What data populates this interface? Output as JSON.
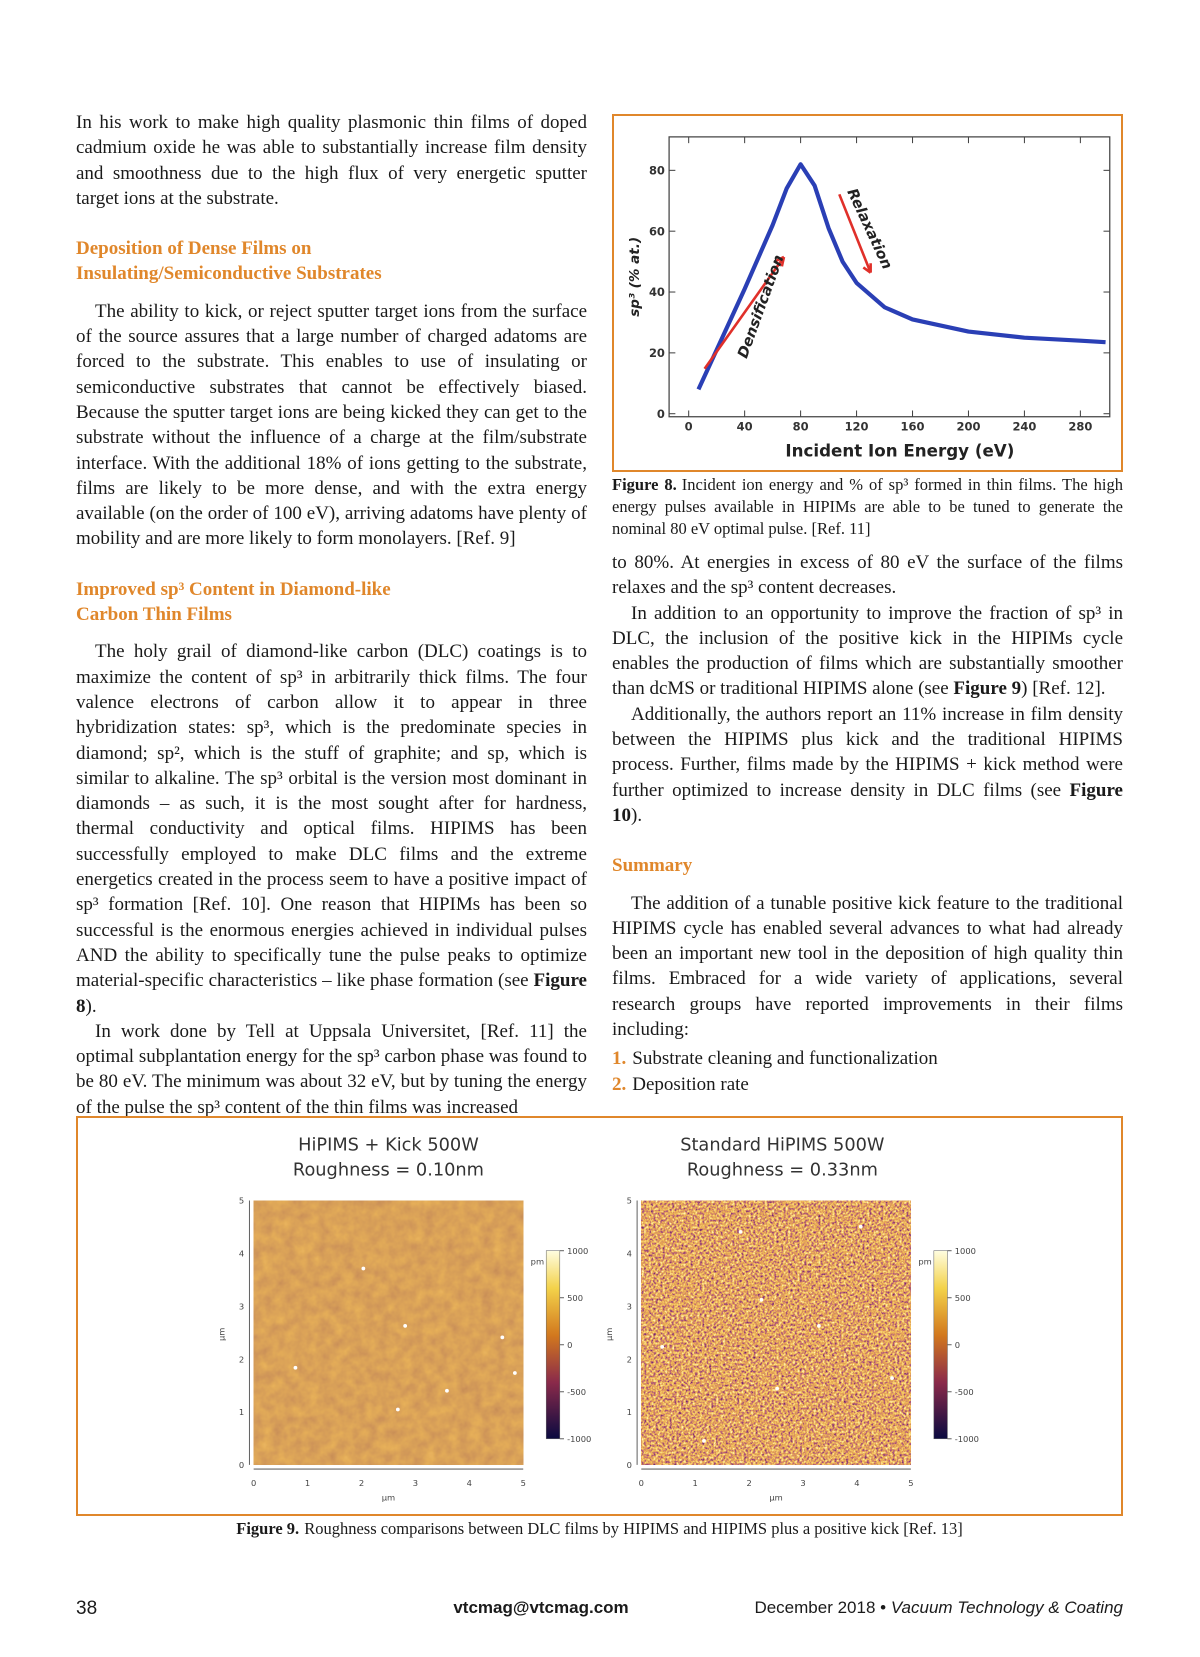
{
  "left_column": {
    "intro": [
      [
        "In his work to make high quality plasmonic thin films of doped cadmium oxide he was able to substantially increase film density and smoothness due to the high flux of very energetic sputter target ions at the substrate."
      ]
    ],
    "sections": [
      {
        "heading": [
          "Deposition of Dense Films on",
          "Insulating/Semiconductive Substrates"
        ],
        "paragraphs": [
          [
            "The ability to kick, or reject sputter target ions from the surface of the source assures that a large number of charged adatoms are forced to the substrate. This enables to use of insulating or semiconductive substrates that cannot be effectively biased. Because the sputter target ions are being kicked they can get to the substrate without the influence of a charge at the film/substrate interface. With the additional 18% of ions getting to the substrate, films are likely to be more dense, and with the extra energy available (on the order of 100 eV), arriving adatoms have plenty of mobility and are more likely to form monolayers. [Ref. 9]"
          ]
        ]
      },
      {
        "heading": [
          "Improved sp³ Content in Diamond-like",
          "Carbon Thin Films"
        ],
        "paragraphs": [
          [
            "The holy grail of diamond-like carbon (DLC) coatings is to maximize the content of sp³ in arbitrarily thick films. The four valence electrons of carbon allow it to appear in three hybridization states: sp³, which is the predominate species in diamond; sp², which is the stuff of graphite; and sp, which is similar to alkaline. The sp³ orbital is the version most dominant in diamonds – as such, it is the most sought after for hardness, thermal conductivity and optical films. HIPIMS has been successfully employed to make DLC films and the extreme energetics created in the process seem to have a positive impact of sp³ formation [Ref. 10]. One reason that HIPIMs has been so successful is the enormous energies achieved in individual pulses AND the ability to specifically tune the pulse peaks to optimize material-specific characteristics – like phase formation (see ",
            "Figure 8",
            ")."
          ],
          [
            "In work done by Tell at Uppsala Universitet, [Ref. 11] the optimal subplantation energy for the sp³ carbon phase was found to be 80 eV. The minimum was about 32 eV, but by tuning the energy of the pulse the sp³ content of the thin films was increased"
          ]
        ]
      }
    ]
  },
  "figure8": {
    "chart": {
      "type": "line",
      "x": [
        7,
        20,
        40,
        60,
        70,
        80,
        90,
        100,
        110,
        120,
        140,
        160,
        200,
        240,
        280,
        298
      ],
      "values": [
        8,
        21,
        41,
        62,
        74,
        82,
        75,
        61,
        50,
        43,
        35,
        31,
        27,
        25,
        24,
        23.5
      ],
      "color": "#2a3fb5",
      "xlim": [
        -14,
        301
      ],
      "ylim": [
        -1,
        91
      ],
      "xticks": [
        0,
        40,
        80,
        120,
        160,
        200,
        240,
        280
      ],
      "yticks": [
        0,
        20,
        40,
        60,
        80
      ],
      "xlabel": "Incident Ion Energy (eV)",
      "ylabel": "sp³ (% at.)",
      "annotations": [
        "Densification",
        "Relaxation"
      ],
      "grid": false
    },
    "caption": [
      "Figure 8.",
      "Incident ion energy and % of sp³ formed in thin films. The high energy pulses available in HIPIMs are able to be tuned to generate the nominal 80 eV optimal pulse. [Ref. 11]"
    ]
  },
  "right_column": {
    "paragraphs": [
      [
        "to 80%. At energies in excess of 80 eV the surface of the films relaxes and the sp³ content decreases."
      ],
      [
        "In addition to an opportunity to improve the fraction of sp³ in DLC, the inclusion of the positive kick in the HIPIMs cycle enables the production of films which are substantially smoother than dcMS or traditional HIPIMS alone (see ",
        "Figure 9",
        ") [Ref. 12]."
      ],
      [
        "Additionally, the authors report an 11% increase in film density between the HIPIMS plus kick and the traditional HIPIMS process. Further, films made by the HIPIMS + kick method were further optimized to increase density in DLC films (see ",
        "Figure 10",
        ")."
      ]
    ],
    "summary": {
      "heading": "Summary",
      "paragraphs": [
        [
          "The addition of a tunable positive kick feature to the traditional HIPIMS cycle has enabled several advances to what had already been an important new tool in the deposition of high quality thin films. Embraced for a wide variety of applications, several research groups have reported improvements in their films including:"
        ]
      ],
      "list": [
        {
          "number": "1.",
          "text": "Substrate cleaning and functionalization"
        },
        {
          "number": "2.",
          "text": "Deposition rate"
        }
      ]
    }
  },
  "figure9": {
    "panels": [
      {
        "title": "HiPIMS + Kick 500W",
        "roughness": "Roughness = 0.10nm",
        "x_ticks": [
          0,
          1,
          2,
          3,
          4,
          5
        ],
        "y_ticks": [
          0,
          1,
          2,
          3,
          4,
          5
        ],
        "x_label": "µm",
        "y_label": "µm",
        "colorbar_label": "pm",
        "colorbar_ticks": [
          1000,
          500,
          0,
          -500,
          -1000
        ]
      },
      {
        "title": "Standard HiPIMS 500W",
        "roughness": "Roughness = 0.33nm",
        "x_ticks": [
          0,
          1,
          2,
          3,
          4,
          5
        ],
        "y_ticks": [
          0,
          1,
          2,
          3,
          4,
          5
        ],
        "x_label": "µm",
        "y_label": "µm",
        "colorbar_label": "pm",
        "colorbar_ticks": [
          1000,
          500,
          0,
          -500,
          -1000
        ]
      }
    ],
    "caption": [
      "Figure 9.",
      "Roughness comparisons between DLC films by HIPIMS and HIPIMS plus a positive kick [Ref. 13]"
    ]
  },
  "footer": {
    "page": "38",
    "email": "vtcmag@vtcmag.com",
    "date": "December 2018",
    "separator": "•",
    "magazine": "Vacuum Technology & Coating"
  }
}
